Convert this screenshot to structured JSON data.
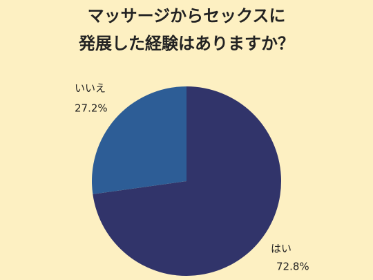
{
  "chart_data": {
    "type": "pie",
    "title": [
      "マッサージからセックスに",
      "発展した経験はありますか？"
    ],
    "categories": [
      "はい",
      "いいえ"
    ],
    "values": [
      72.8,
      27.2
    ],
    "value_labels": [
      "72.8%",
      "27.2%"
    ],
    "colors": [
      "#31346a",
      "#2d5d96"
    ],
    "start": "top",
    "direction": "clockwise"
  }
}
